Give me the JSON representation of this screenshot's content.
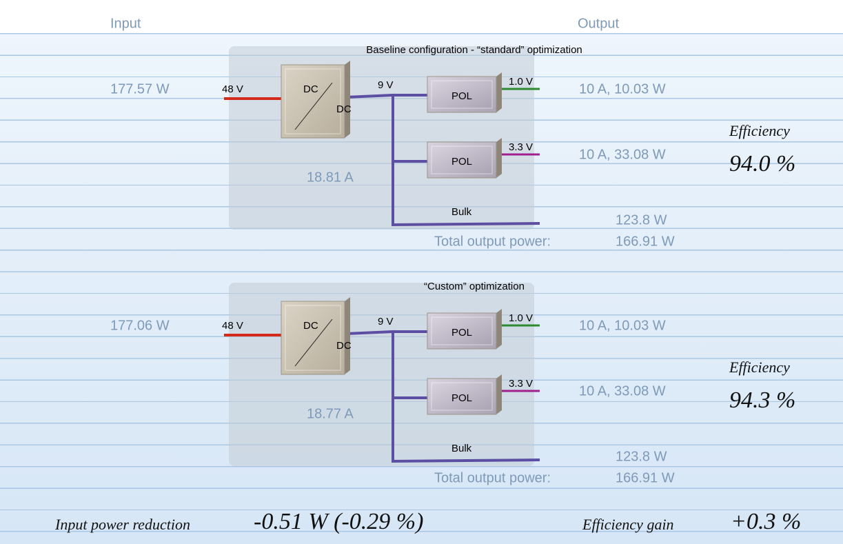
{
  "header": {
    "input": "Input",
    "output": "Output"
  },
  "panels": [
    {
      "title": "Baseline configuration - “standard” optimization",
      "input_power": "177.57 W",
      "input_voltage": "48 V",
      "converter_top": "DC",
      "converter_bottom": "DC",
      "bus_voltage": "9 V",
      "bus_current": "18.81 A",
      "rails": [
        {
          "pol": "POL",
          "voltage": "1.0 V",
          "output": "10 A, 10.03 W"
        },
        {
          "pol": "POL",
          "voltage": "3.3 V",
          "output": "10 A, 33.08 W"
        }
      ],
      "bulk_label": "Bulk",
      "bulk_power": "123.8 W",
      "total_label": "Total output power:",
      "total_power": "166.91 W",
      "efficiency_label": "Efficiency",
      "efficiency": "94.0 %"
    },
    {
      "title": "“Custom” optimization",
      "input_power": "177.06 W",
      "input_voltage": "48 V",
      "converter_top": "DC",
      "converter_bottom": "DC",
      "bus_voltage": "9 V",
      "bus_current": "18.77 A",
      "rails": [
        {
          "pol": "POL",
          "voltage": "1.0 V",
          "output": "10 A, 10.03 W"
        },
        {
          "pol": "POL",
          "voltage": "3.3 V",
          "output": "10 A, 33.08 W"
        }
      ],
      "bulk_label": "Bulk",
      "bulk_power": "123.8 W",
      "total_label": "Total output power:",
      "total_power": "166.91 W",
      "efficiency_label": "Efficiency",
      "efficiency": "94.3 %"
    }
  ],
  "summary": {
    "reduction_label": "Input power reduction",
    "reduction_value": "-0.51 W (-0.29 %)",
    "gain_label": "Efficiency gain",
    "gain_value": "+0.3 %"
  }
}
